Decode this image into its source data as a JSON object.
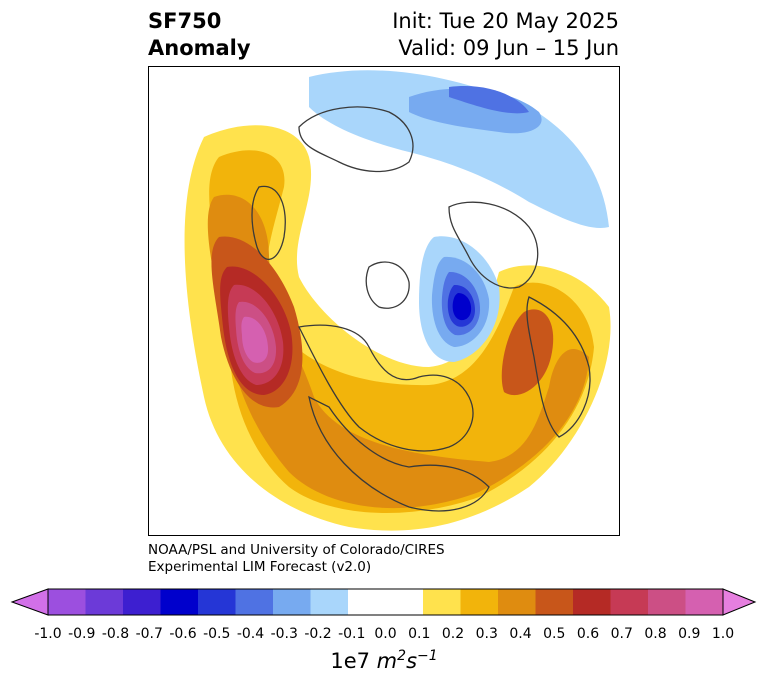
{
  "header": {
    "left_line1": "SF750",
    "left_line2": "Anomaly",
    "right_line1": "Init: Tue 20 May 2025",
    "right_line2": "Valid: 09 Jun – 15 Jun"
  },
  "credit": {
    "line1": "NOAA/PSL and University of Colorado/CIRES",
    "line2": "Experimental LIM Forecast (v2.0)"
  },
  "colorbar": {
    "ticks": [
      "-1.0",
      "-0.9",
      "-0.8",
      "-0.7",
      "-0.6",
      "-0.5",
      "-0.4",
      "-0.3",
      "-0.2",
      "-0.1",
      "0.0",
      "0.1",
      "0.2",
      "0.3",
      "0.4",
      "0.5",
      "0.6",
      "0.7",
      "0.8",
      "0.9",
      "1.0"
    ],
    "colors": [
      "#9c4fdf",
      "#6c3ad8",
      "#3d1fd0",
      "#0000cc",
      "#2536d6",
      "#4f72e3",
      "#77aaf0",
      "#a9d6fb",
      "#ffffff",
      "#ffffff",
      "#ffe24d",
      "#f2b40b",
      "#df8c10",
      "#c8561a",
      "#b52a25",
      "#c63a55",
      "#cc4f85",
      "#d560b0"
    ],
    "extend_low_color": "#d270e8",
    "extend_high_color": "#e67fdf",
    "units_prefix": "1e7 ",
    "units_label": "m",
    "units_exp1": "2",
    "units_mid": "s",
    "units_exp2": "−1"
  },
  "map": {
    "projection": "north-polar-stereographic",
    "continent_outline_color": "#3a3a3a"
  }
}
